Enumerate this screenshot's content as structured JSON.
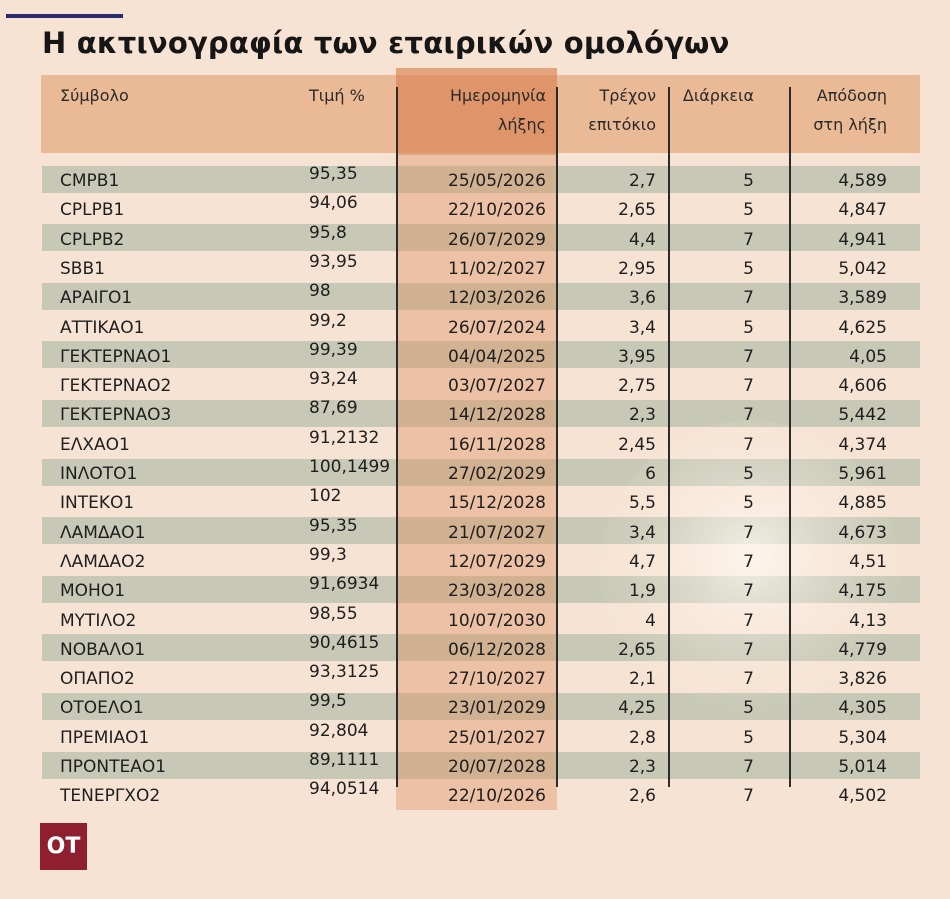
{
  "title": "Η ακτινογραφία των εταιρικών ομολόγων",
  "logo_text": "ΟΤ",
  "colors": {
    "background": "#f6e3d3",
    "header_band": "#eab995",
    "row_band": "#c7c8b5",
    "date_highlight": "#df8c5a",
    "accent_rule": "#2b2a6b",
    "logo_bg": "#8f1f2f"
  },
  "chart_data": {
    "type": "table",
    "columns": [
      {
        "key": "symbol",
        "label_lines": [
          "Σύμβολο",
          ""
        ]
      },
      {
        "key": "price",
        "label_lines": [
          "Τιμή %",
          ""
        ]
      },
      {
        "key": "maturity",
        "label_lines": [
          "Ημερομηνία",
          "λήξης"
        ]
      },
      {
        "key": "coupon",
        "label_lines": [
          "Τρέχον",
          "επιτόκιο"
        ]
      },
      {
        "key": "duration",
        "label_lines": [
          "Διάρκεια",
          ""
        ]
      },
      {
        "key": "ytm",
        "label_lines": [
          "Απόδοση",
          "στη λήξη"
        ]
      }
    ],
    "rows": [
      [
        "CMPB1",
        "95,35",
        "25/05/2026",
        "2,7",
        "5",
        "4,589"
      ],
      [
        "CPLPB1",
        "94,06",
        "22/10/2026",
        "2,65",
        "5",
        "4,847"
      ],
      [
        "CPLPB2",
        "95,8",
        "26/07/2029",
        "4,4",
        "7",
        "4,941"
      ],
      [
        "SBB1",
        "93,95",
        "11/02/2027",
        "2,95",
        "5",
        "5,042"
      ],
      [
        "ΑΡΑΙΓΟ1",
        "98",
        "12/03/2026",
        "3,6",
        "7",
        "3,589"
      ],
      [
        "ΑΤΤΙΚΑΟ1",
        "99,2",
        "26/07/2024",
        "3,4",
        "5",
        "4,625"
      ],
      [
        "ΓΕΚΤΕΡΝΑΟ1",
        "99,39",
        "04/04/2025",
        "3,95",
        "7",
        "4,05"
      ],
      [
        "ΓΕΚΤΕΡΝΑΟ2",
        "93,24",
        "03/07/2027",
        "2,75",
        "7",
        "4,606"
      ],
      [
        "ΓΕΚΤΕΡΝΑΟ3",
        "87,69",
        "14/12/2028",
        "2,3",
        "7",
        "5,442"
      ],
      [
        "ΕΛΧΑΟ1",
        "91,2132",
        "16/11/2028",
        "2,45",
        "7",
        "4,374"
      ],
      [
        "ΙΝΛΟΤΟ1",
        "100,1499",
        "27/02/2029",
        "6",
        "5",
        "5,961"
      ],
      [
        "ΙΝΤΕΚΟ1",
        "102",
        "15/12/2028",
        "5,5",
        "5",
        "4,885"
      ],
      [
        "ΛΑΜΔΑΟ1",
        "95,35",
        "21/07/2027",
        "3,4",
        "7",
        "4,673"
      ],
      [
        "ΛΑΜΔΑΟ2",
        "99,3",
        "12/07/2029",
        "4,7",
        "7",
        "4,51"
      ],
      [
        "ΜΟΗΟ1",
        "91,6934",
        "23/03/2028",
        "1,9",
        "7",
        "4,175"
      ],
      [
        "ΜΥΤΙΛΟ2",
        "98,55",
        "10/07/2030",
        "4",
        "7",
        "4,13"
      ],
      [
        "ΝΟΒΑΛΟ1",
        "90,4615",
        "06/12/2028",
        "2,65",
        "7",
        "4,779"
      ],
      [
        "ΟΠΑΠΟ2",
        "93,3125",
        "27/10/2027",
        "2,1",
        "7",
        "3,826"
      ],
      [
        "ΟΤΟΕΛΟ1",
        "99,5",
        "23/01/2029",
        "4,25",
        "5",
        "4,305"
      ],
      [
        "ΠΡΕΜΙΑΟ1",
        "92,804",
        "25/01/2027",
        "2,8",
        "5",
        "5,304"
      ],
      [
        "ΠΡΟΝΤΕΑΟ1",
        "89,1111",
        "20/07/2028",
        "2,3",
        "7",
        "5,014"
      ],
      [
        "ΤΕΝΕΡΓΧΟ2",
        "94,0514",
        "22/10/2026",
        "2,6",
        "7",
        "4,502"
      ]
    ]
  }
}
